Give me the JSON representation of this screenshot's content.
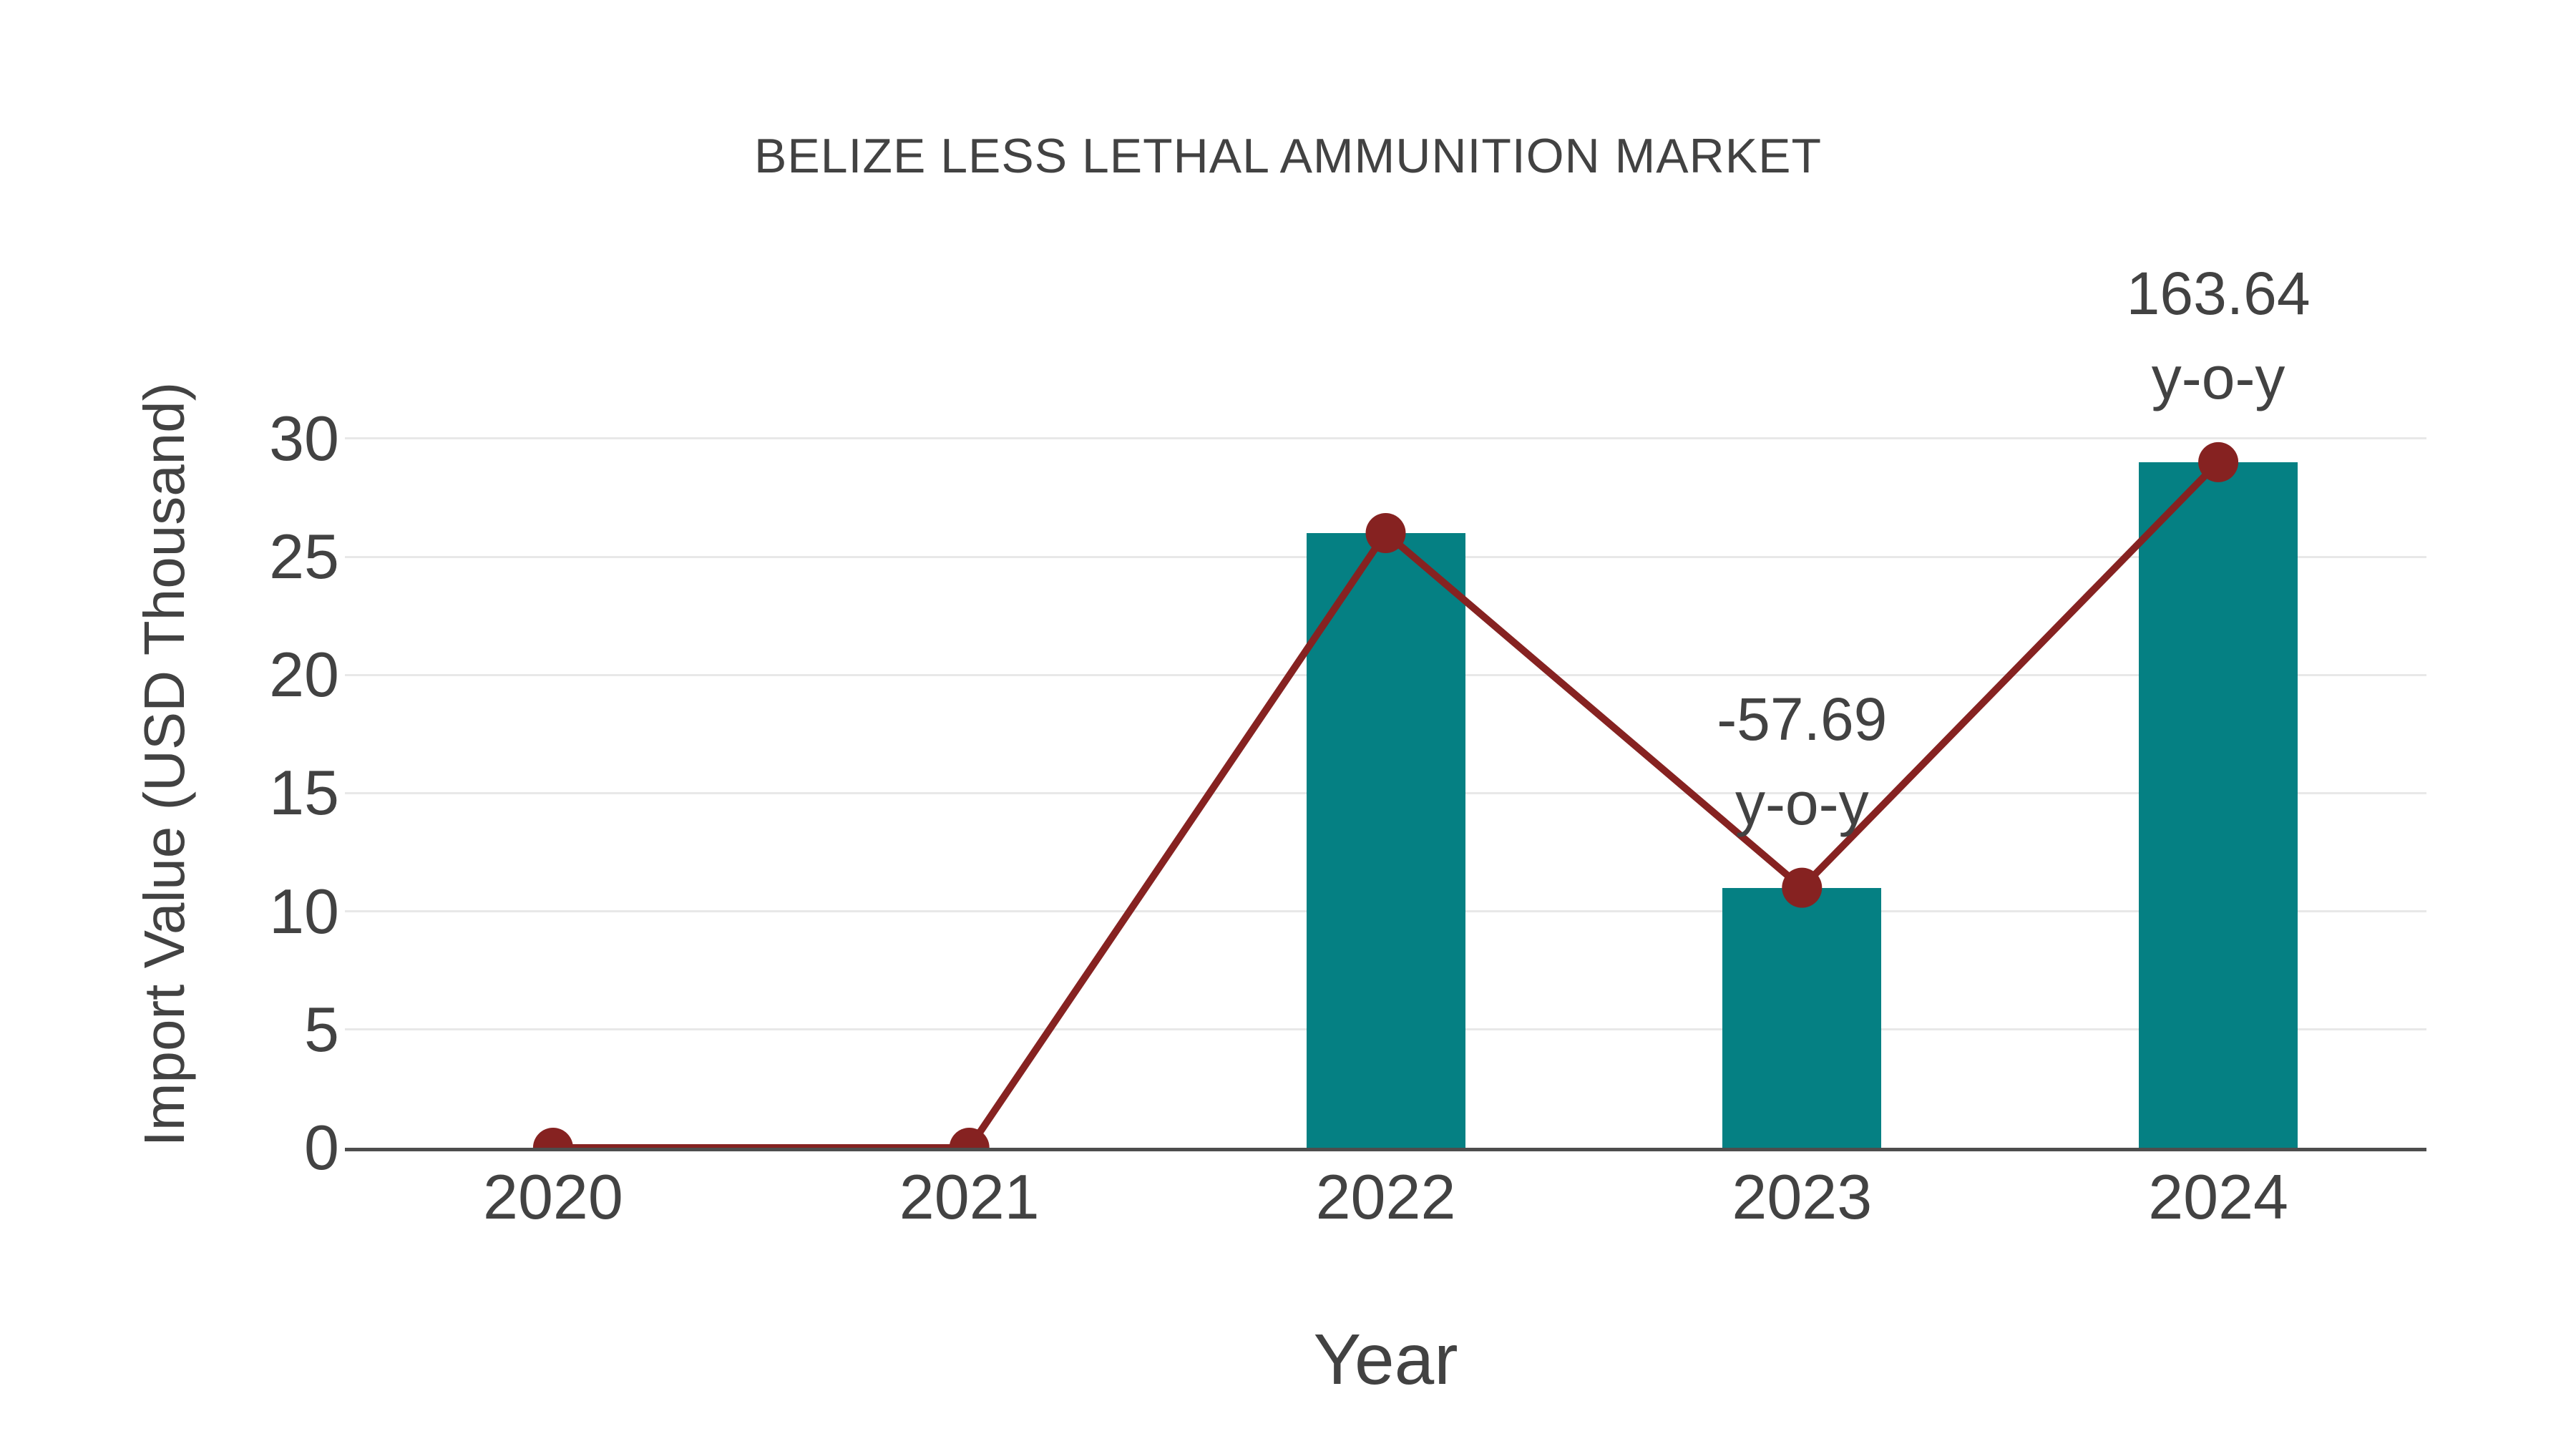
{
  "chart_data": {
    "type": "bar",
    "title": "BELIZE LESS LETHAL AMMUNITION MARKET",
    "xlabel": "Year",
    "ylabel": "Import Value (USD Thousand)",
    "categories": [
      "2020",
      "2021",
      "2022",
      "2023",
      "2024"
    ],
    "series": [
      {
        "name": "import-value-bars",
        "type": "bar",
        "values": [
          0,
          0,
          26,
          11,
          29
        ]
      },
      {
        "name": "import-value-trend",
        "type": "line",
        "values": [
          0,
          0,
          26,
          11,
          29
        ]
      }
    ],
    "annotations": [
      {
        "category": "2023",
        "point_index": 3,
        "line1": "-57.69",
        "line2": "y-o-y"
      },
      {
        "category": "2024",
        "point_index": 4,
        "line1": "163.64",
        "line2": "y-o-y"
      }
    ],
    "yticks": [
      0,
      5,
      10,
      15,
      20,
      25,
      30
    ],
    "ylim": [
      0,
      31.6
    ],
    "grid": true,
    "legend_position": "none",
    "colors": {
      "bar": "#058083",
      "line": "#862221",
      "marker": "#862221",
      "text": "#424242",
      "grid": "#e8e8e8",
      "axis": "#4d4d4d",
      "background": "#ffffff"
    }
  }
}
